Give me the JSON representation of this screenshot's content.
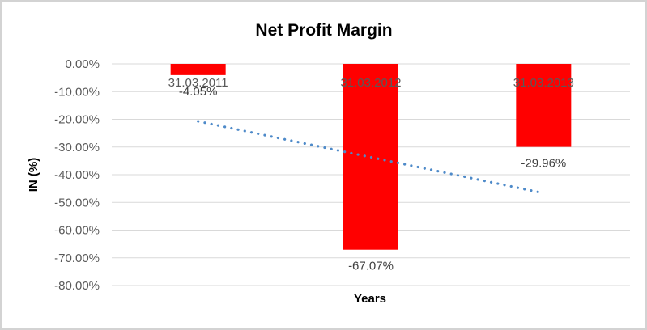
{
  "chart_data": {
    "type": "bar",
    "title": "Net Profit Margin",
    "categories": [
      "31.03.2011",
      "31.03.2012",
      "31.03.2013"
    ],
    "values": [
      -4.05,
      -67.07,
      -29.96
    ],
    "data_labels": [
      "-4.05%",
      "-67.07%",
      "-29.96%"
    ],
    "xlabel": "Years",
    "ylabel": "IN (%)",
    "ylim": [
      -80,
      0
    ],
    "yticks": [
      0,
      -10,
      -20,
      -30,
      -40,
      -50,
      -60,
      -70,
      -80
    ],
    "ytick_labels": [
      "0.00%",
      "-10.00%",
      "-20.00%",
      "-30.00%",
      "-40.00%",
      "-50.00%",
      "-60.00%",
      "-70.00%",
      "-80.00%"
    ],
    "grid": true,
    "legend": "none",
    "bar_color": "#ff0000",
    "gridline_color": "#d9d9d9",
    "trendline": {
      "type": "linear",
      "style": "dotted",
      "color": "#4e8ac9",
      "start_value": -20.73,
      "end_value": -46.66
    },
    "text_colors": {
      "title": "#595959",
      "axis": "#595959",
      "data_label": "#404040"
    }
  },
  "figure": {
    "background": "#ffffff",
    "border_color": "#d3d3d3"
  }
}
